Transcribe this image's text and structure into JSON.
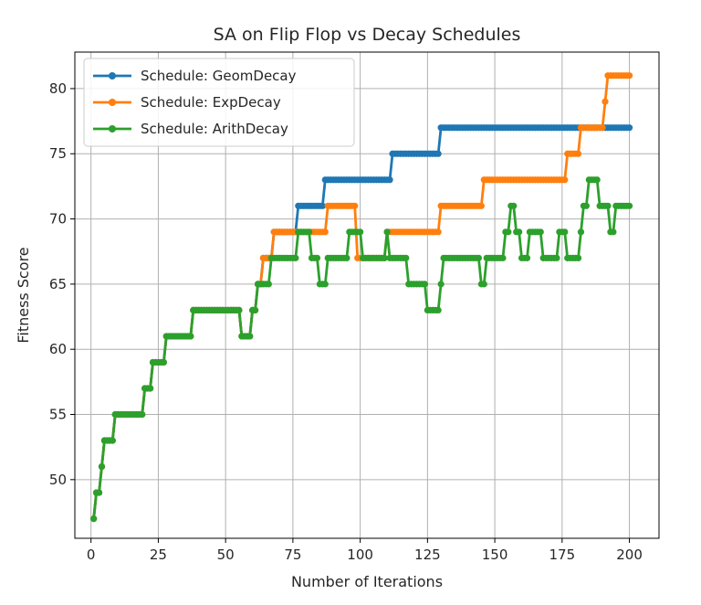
{
  "chart_data": {
    "type": "line",
    "title": "SA on Flip Flop vs Decay Schedules",
    "xlabel": "Number of Iterations",
    "ylabel": "Fitness Score",
    "xlim": [
      -6,
      211
    ],
    "ylim": [
      45.5,
      82.8
    ],
    "xticks": [
      0,
      25,
      50,
      75,
      100,
      125,
      150,
      175,
      200
    ],
    "yticks": [
      50,
      55,
      60,
      65,
      70,
      75,
      80
    ],
    "grid": true,
    "legend": "top-left",
    "series": [
      {
        "name": "Schedule: GeomDecay",
        "color": "#1f77b4",
        "steps": [
          [
            1,
            47
          ],
          [
            2,
            49
          ],
          [
            4,
            51
          ],
          [
            5,
            53
          ],
          [
            9,
            55
          ],
          [
            20,
            57
          ],
          [
            23,
            59
          ],
          [
            28,
            61
          ],
          [
            38,
            63
          ],
          [
            56,
            61
          ],
          [
            60,
            63
          ],
          [
            62,
            65
          ],
          [
            64,
            67
          ],
          [
            68,
            69
          ],
          [
            77,
            71
          ],
          [
            87,
            73
          ],
          [
            112,
            75
          ],
          [
            130,
            77
          ],
          [
            200,
            77
          ]
        ]
      },
      {
        "name": "Schedule: ExpDecay",
        "color": "#ff7f0e",
        "steps": [
          [
            1,
            47
          ],
          [
            2,
            49
          ],
          [
            4,
            51
          ],
          [
            5,
            53
          ],
          [
            9,
            55
          ],
          [
            20,
            57
          ],
          [
            23,
            59
          ],
          [
            28,
            61
          ],
          [
            38,
            63
          ],
          [
            56,
            61
          ],
          [
            60,
            63
          ],
          [
            62,
            65
          ],
          [
            64,
            67
          ],
          [
            68,
            69
          ],
          [
            88,
            71
          ],
          [
            99,
            67
          ],
          [
            110,
            69
          ],
          [
            130,
            71
          ],
          [
            146,
            73
          ],
          [
            177,
            75
          ],
          [
            182,
            77
          ],
          [
            191,
            79
          ],
          [
            192,
            81
          ],
          [
            200,
            81
          ]
        ]
      },
      {
        "name": "Schedule: ArithDecay",
        "color": "#2ca02c",
        "steps": [
          [
            1,
            47
          ],
          [
            2,
            49
          ],
          [
            4,
            51
          ],
          [
            5,
            53
          ],
          [
            9,
            55
          ],
          [
            20,
            57
          ],
          [
            23,
            59
          ],
          [
            28,
            61
          ],
          [
            38,
            63
          ],
          [
            56,
            61
          ],
          [
            60,
            63
          ],
          [
            62,
            65
          ],
          [
            67,
            67
          ],
          [
            77,
            69
          ],
          [
            82,
            67
          ],
          [
            85,
            65
          ],
          [
            88,
            67
          ],
          [
            96,
            69
          ],
          [
            101,
            67
          ],
          [
            110,
            69
          ],
          [
            111,
            67
          ],
          [
            118,
            65
          ],
          [
            125,
            63
          ],
          [
            130,
            65
          ],
          [
            131,
            67
          ],
          [
            145,
            65
          ],
          [
            147,
            67
          ],
          [
            154,
            69
          ],
          [
            156,
            71
          ],
          [
            158,
            69
          ],
          [
            160,
            67
          ],
          [
            163,
            69
          ],
          [
            168,
            67
          ],
          [
            174,
            69
          ],
          [
            177,
            67
          ],
          [
            182,
            69
          ],
          [
            183,
            71
          ],
          [
            185,
            73
          ],
          [
            189,
            71
          ],
          [
            193,
            69
          ],
          [
            195,
            71
          ],
          [
            200,
            71
          ]
        ]
      }
    ]
  }
}
